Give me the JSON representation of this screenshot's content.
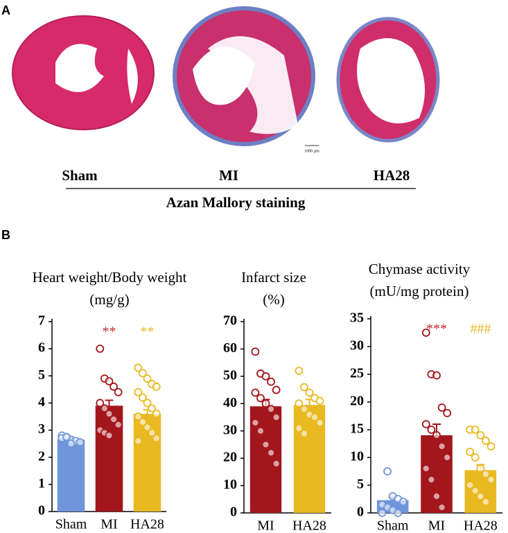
{
  "panel_a": {
    "label": "A",
    "groups": [
      "Sham",
      "MI",
      "HA28"
    ],
    "caption": "Azan Mallory staining",
    "scale_bar": "1000 µm"
  },
  "panel_b": {
    "label": "B"
  },
  "chart_data": [
    {
      "type": "bar",
      "title": [
        "Heart weight/Body weight",
        "(mg/g)"
      ],
      "categories": [
        "Sham",
        "MI",
        "HA28"
      ],
      "values": [
        2.65,
        3.9,
        3.6
      ],
      "errors": [
        0.05,
        0.2,
        0.15
      ],
      "colors": [
        "#6f95db",
        "#a3161c",
        "#e9b922"
      ],
      "points": [
        [
          2.8,
          2.7,
          2.65,
          2.6,
          2.55,
          2.7,
          2.75,
          2.5
        ],
        [
          6.0,
          4.9,
          4.8,
          4.6,
          4.4,
          4.0,
          3.8,
          3.6,
          3.4,
          3.2,
          3.0,
          2.9,
          2.8
        ],
        [
          5.3,
          5.1,
          4.9,
          4.7,
          4.6,
          4.4,
          4.2,
          4.0,
          3.8,
          3.6,
          3.5,
          3.3,
          3.1,
          2.9,
          2.7,
          2.6
        ]
      ],
      "annotations": [
        {
          "category": 1,
          "text": "**",
          "color": "#c0272d"
        },
        {
          "category": 2,
          "text": "**",
          "color": "#e9b922"
        }
      ],
      "ylim": [
        0,
        7
      ],
      "yticks": [
        0,
        1,
        2,
        3,
        4,
        5,
        6,
        7
      ]
    },
    {
      "type": "bar",
      "title": [
        "Infarct size",
        "(%)"
      ],
      "categories": [
        "MI",
        "HA28"
      ],
      "values": [
        39,
        39.5
      ],
      "errors": [
        2.5,
        2
      ],
      "colors": [
        "#a3161c",
        "#e9b922"
      ],
      "points": [
        [
          59,
          51,
          50,
          48,
          45,
          44,
          42,
          40,
          38,
          35,
          33,
          30,
          25,
          22,
          18
        ],
        [
          52,
          46,
          44,
          42,
          41,
          40,
          38,
          36,
          35,
          33,
          31,
          29
        ]
      ],
      "annotations": [],
      "ylim": [
        0,
        70
      ],
      "yticks": [
        0,
        10,
        20,
        30,
        40,
        50,
        60,
        70
      ]
    },
    {
      "type": "bar",
      "title": [
        "Chymase activity",
        "(mU/mg protein)"
      ],
      "categories": [
        "Sham",
        "MI",
        "HA28"
      ],
      "values": [
        2.3,
        14,
        7.7
      ],
      "errors": [
        0.5,
        2,
        1
      ],
      "colors": [
        "#6f95db",
        "#a3161c",
        "#e9b922"
      ],
      "points": [
        [
          0,
          7.5,
          3,
          2.5,
          2,
          1.5,
          1,
          0.5,
          0
        ],
        [
          32.5,
          25,
          24.8,
          19,
          18,
          16,
          15,
          14,
          12,
          10,
          8,
          6,
          3,
          1
        ],
        [
          15,
          15,
          14,
          13,
          12,
          11,
          10,
          8,
          7,
          6,
          5,
          4,
          3,
          2
        ]
      ],
      "annotations": [
        {
          "category": 1,
          "text": "***",
          "color": "#c0272d"
        },
        {
          "category": 2,
          "text": "###",
          "color": "#e9b922"
        }
      ],
      "ylim": [
        0,
        35
      ],
      "yticks": [
        0,
        5,
        10,
        15,
        20,
        25,
        30,
        35
      ]
    }
  ]
}
